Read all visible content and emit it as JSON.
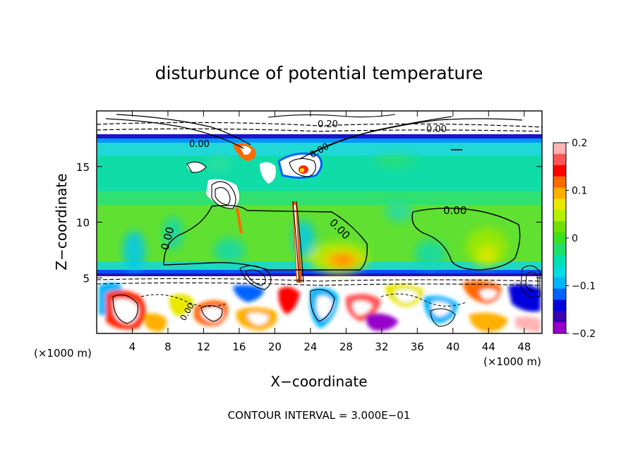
{
  "chart_data": {
    "type": "heatmap",
    "title": "disturbunce of potential temperature",
    "xlabel": "X−coordinate",
    "ylabel": "Z−coordinate",
    "x_unit": "(×1000 m)",
    "y_unit": "(×1000 m)",
    "xlim": [
      0,
      50
    ],
    "ylim": [
      0,
      20
    ],
    "xticks": [
      4,
      8,
      12,
      16,
      20,
      24,
      28,
      32,
      36,
      40,
      44,
      48
    ],
    "xtick_labels": [
      "4",
      "8",
      "12",
      "16",
      "20",
      "24",
      "28",
      "32",
      "36",
      "40",
      "44",
      "48"
    ],
    "yticks": [
      5,
      10,
      15
    ],
    "ytick_labels": [
      "5",
      "10",
      "15"
    ],
    "contour_labels": [
      "0.00",
      "0.00",
      "0.00",
      "0.00",
      "0.00",
      "0.00",
      "0.00",
      "0.20"
    ],
    "colorbar": {
      "range": [
        -0.2,
        0.2
      ],
      "ticks": [
        0.2,
        0.1,
        0,
        -0.1,
        -0.2
      ],
      "tick_labels": [
        "0.2",
        "0.1",
        "0",
        "−0.1",
        "−0.2"
      ],
      "colors": [
        "#ffb3b3",
        "#ff5555",
        "#ff0000",
        "#ff6a00",
        "#ffb000",
        "#e8e800",
        "#b4f000",
        "#70e000",
        "#3ce020",
        "#20e06a",
        "#00e0b0",
        "#00dce0",
        "#00b4ff",
        "#0064ff",
        "#0000dc",
        "#3c00b4",
        "#9600c8"
      ]
    },
    "footer": "CONTOUR INTERVAL = 3.000E−01"
  }
}
